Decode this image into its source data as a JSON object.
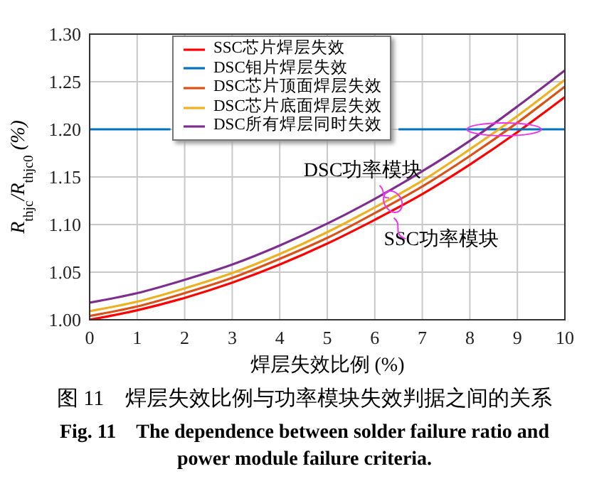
{
  "chart_data": {
    "type": "line",
    "xlabel": "焊层失效比例 (%)",
    "ylabel": "R$_{thjc}$/R$_{thjc0}$ (%)",
    "x": [
      0,
      1,
      2,
      3,
      4,
      5,
      6,
      7,
      8,
      9,
      10
    ],
    "series": [
      {
        "name": "SSC芯片焊层失效",
        "color": "#ff0000",
        "values": [
          1.0,
          1.01,
          1.023,
          1.039,
          1.058,
          1.08,
          1.105,
          1.132,
          1.163,
          1.197,
          1.234
        ]
      },
      {
        "name": "DSC钼片焊层失效",
        "color": "#0072bd",
        "x": [
          0,
          1,
          1.7,
          4,
          6.5,
          7,
          8,
          9,
          10
        ],
        "values": [
          1.2,
          1.2,
          1.2,
          null,
          1.2,
          1.2,
          1.2,
          1.2,
          1.2
        ]
      },
      {
        "name": "DSC芯片顶面焊层失效",
        "color": "#d95319",
        "values": [
          1.004,
          1.014,
          1.028,
          1.044,
          1.064,
          1.086,
          1.112,
          1.14,
          1.172,
          1.207,
          1.245
        ]
      },
      {
        "name": "DSC芯片底面焊层失效",
        "color": "#edb120",
        "values": [
          1.009,
          1.019,
          1.033,
          1.049,
          1.069,
          1.092,
          1.118,
          1.146,
          1.179,
          1.214,
          1.252
        ]
      },
      {
        "name": "DSC所有焊层同时失效",
        "color": "#7e2f8e",
        "values": [
          1.018,
          1.028,
          1.042,
          1.058,
          1.078,
          1.101,
          1.127,
          1.156,
          1.188,
          1.224,
          1.262
        ]
      }
    ],
    "xlim": [
      0,
      10
    ],
    "xticks": [
      0,
      1,
      2,
      3,
      4,
      5,
      6,
      7,
      8,
      9,
      10
    ],
    "ylim": [
      1.0,
      1.3
    ],
    "yticks": [
      {
        "value": 1.0,
        "label": "1.00"
      },
      {
        "value": 1.05,
        "label": "1.05"
      },
      {
        "value": 1.1,
        "label": "1.10"
      },
      {
        "value": 1.15,
        "label": "1.15"
      },
      {
        "value": 1.2,
        "label": "1.20"
      },
      {
        "value": 1.25,
        "label": "1.25"
      },
      {
        "value": 1.3,
        "label": "1.30"
      }
    ],
    "grid": true,
    "legend": "top",
    "annotations": [
      "DSC功率模块",
      "SSC功率模块",
      "图 11　焊层失效比例与功率模块失效判据之间的关系",
      "Fig. 11　The dependence between solder failure ratio and power module failure criteria."
    ]
  }
}
